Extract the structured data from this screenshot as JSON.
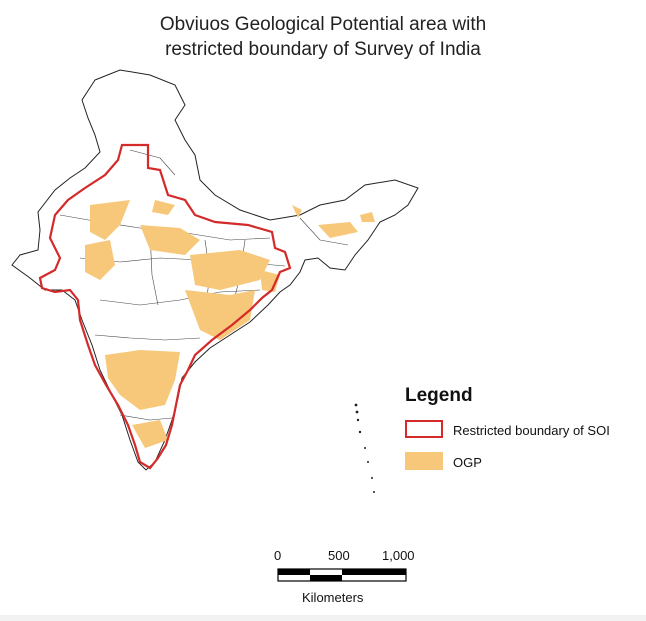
{
  "title": {
    "line1": "Obviuos Geological Potential area with",
    "line2": "restricted boundary of Survey of India"
  },
  "legend": {
    "heading": "Legend",
    "items": [
      {
        "label": "Restricted boundary of SOI",
        "color": "#d42a2a",
        "kind": "outline"
      },
      {
        "label": "OGP",
        "color": "#f7c87a",
        "kind": "fill"
      }
    ]
  },
  "scale_bar": {
    "ticks": [
      "0",
      "500",
      "1,000"
    ],
    "unit": "Kilometers"
  }
}
